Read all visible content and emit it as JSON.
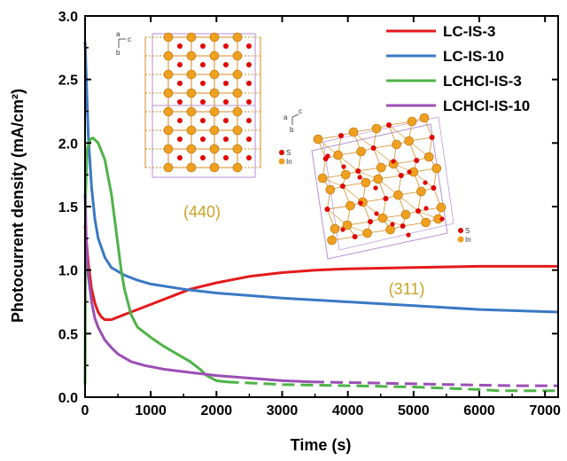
{
  "chart_data": {
    "type": "line",
    "xlabel": "Time (s)",
    "ylabel": "Photocurrent density (mA/cm²)",
    "xlim": [
      0,
      7200
    ],
    "ylim": [
      0,
      3.0
    ],
    "xticks": [
      0,
      1000,
      2000,
      3000,
      4000,
      5000,
      6000,
      7000
    ],
    "yticks": [
      0.0,
      0.5,
      1.0,
      1.5,
      2.0,
      2.5,
      3.0
    ],
    "xtick_labels": [
      "0",
      "1000",
      "2000",
      "3000",
      "4000",
      "5000",
      "6000",
      "7000"
    ],
    "ytick_labels": [
      "0.0",
      "0.5",
      "1.0",
      "1.5",
      "2.0",
      "2.5",
      "3.0"
    ],
    "legend_position": "top-right",
    "grid": false,
    "series": [
      {
        "name": "LC-IS-3",
        "color": "#e41a1c",
        "style": "solid",
        "points": [
          [
            0,
            1.35
          ],
          [
            50,
            1.05
          ],
          [
            100,
            0.85
          ],
          [
            150,
            0.74
          ],
          [
            200,
            0.67
          ],
          [
            250,
            0.63
          ],
          [
            300,
            0.61
          ],
          [
            400,
            0.61
          ],
          [
            500,
            0.63
          ],
          [
            700,
            0.67
          ],
          [
            1000,
            0.73
          ],
          [
            1300,
            0.79
          ],
          [
            1600,
            0.85
          ],
          [
            2000,
            0.9
          ],
          [
            2500,
            0.95
          ],
          [
            3000,
            0.98
          ],
          [
            3500,
            1.0
          ],
          [
            4000,
            1.01
          ],
          [
            5000,
            1.02
          ],
          [
            6000,
            1.03
          ],
          [
            7200,
            1.03
          ]
        ]
      },
      {
        "name": "LC-IS-10",
        "color": "#3a78c4",
        "style": "solid",
        "points": [
          [
            0,
            2.8
          ],
          [
            20,
            2.5
          ],
          [
            50,
            2.05
          ],
          [
            100,
            1.65
          ],
          [
            150,
            1.4
          ],
          [
            200,
            1.25
          ],
          [
            300,
            1.1
          ],
          [
            400,
            1.02
          ],
          [
            600,
            0.96
          ],
          [
            800,
            0.92
          ],
          [
            1000,
            0.89
          ],
          [
            1500,
            0.85
          ],
          [
            2000,
            0.82
          ],
          [
            3000,
            0.78
          ],
          [
            4000,
            0.75
          ],
          [
            5000,
            0.72
          ],
          [
            6000,
            0.69
          ],
          [
            7200,
            0.67
          ]
        ]
      },
      {
        "name": "LCHCl-IS-3",
        "color": "#4db347",
        "style": "solid",
        "points": [
          [
            0,
            0.1
          ],
          [
            5,
            1.0
          ],
          [
            10,
            1.6
          ],
          [
            30,
            1.95
          ],
          [
            80,
            2.03
          ],
          [
            120,
            2.04
          ],
          [
            200,
            2.0
          ],
          [
            300,
            1.87
          ],
          [
            400,
            1.6
          ],
          [
            450,
            1.4
          ],
          [
            500,
            1.2
          ],
          [
            550,
            1.0
          ],
          [
            600,
            0.85
          ],
          [
            700,
            0.65
          ],
          [
            800,
            0.55
          ],
          [
            1000,
            0.47
          ],
          [
            1200,
            0.4
          ],
          [
            1400,
            0.34
          ],
          [
            1600,
            0.28
          ],
          [
            1750,
            0.22
          ],
          [
            1850,
            0.17
          ],
          [
            2000,
            0.13
          ],
          [
            2150,
            0.12
          ]
        ]
      },
      {
        "name": "LCHCl-IS-3",
        "color": "#4db347",
        "style": "dashed",
        "points": [
          [
            2150,
            0.12
          ],
          [
            3000,
            0.1
          ],
          [
            4000,
            0.09
          ],
          [
            5000,
            0.08
          ],
          [
            6000,
            0.06
          ],
          [
            6300,
            0.05
          ],
          [
            7200,
            0.05
          ]
        ]
      },
      {
        "name": "LCHCl-IS-10",
        "color": "#9b4fb5",
        "style": "solid",
        "points": [
          [
            0,
            1.6
          ],
          [
            20,
            1.2
          ],
          [
            50,
            0.95
          ],
          [
            100,
            0.75
          ],
          [
            150,
            0.62
          ],
          [
            200,
            0.55
          ],
          [
            300,
            0.45
          ],
          [
            400,
            0.39
          ],
          [
            500,
            0.34
          ],
          [
            700,
            0.28
          ],
          [
            900,
            0.25
          ],
          [
            1200,
            0.22
          ],
          [
            1500,
            0.2
          ],
          [
            2000,
            0.17
          ],
          [
            2500,
            0.15
          ],
          [
            3000,
            0.13
          ],
          [
            3450,
            0.12
          ]
        ]
      },
      {
        "name": "LCHCl-IS-10",
        "color": "#9b4fb5",
        "style": "dashed",
        "points": [
          [
            3450,
            0.12
          ],
          [
            4500,
            0.11
          ],
          [
            5500,
            0.1
          ],
          [
            6500,
            0.09
          ],
          [
            7200,
            0.09
          ]
        ]
      }
    ],
    "legend": [
      {
        "label": "LC-IS-3",
        "color": "#e41a1c"
      },
      {
        "label": "LC-IS-10",
        "color": "#3a78c4"
      },
      {
        "label": "LCHCl-IS-3",
        "color": "#4db347"
      },
      {
        "label": "LCHCl-IS-10",
        "color": "#9b4fb5"
      }
    ],
    "annotations": [
      {
        "text": "(440)",
        "color": "#c9a227"
      },
      {
        "text": "(311)",
        "color": "#c9a227"
      }
    ],
    "inset_labels": {
      "axes_a": "a",
      "axes_b": "b",
      "axes_c": "c",
      "atom_s": "S",
      "atom_in": "In"
    },
    "colors": {
      "atom_in": "#f0a020",
      "atom_s": "#e00000",
      "cell_edge": "#b58fd6",
      "bond": "#d58a20"
    }
  }
}
